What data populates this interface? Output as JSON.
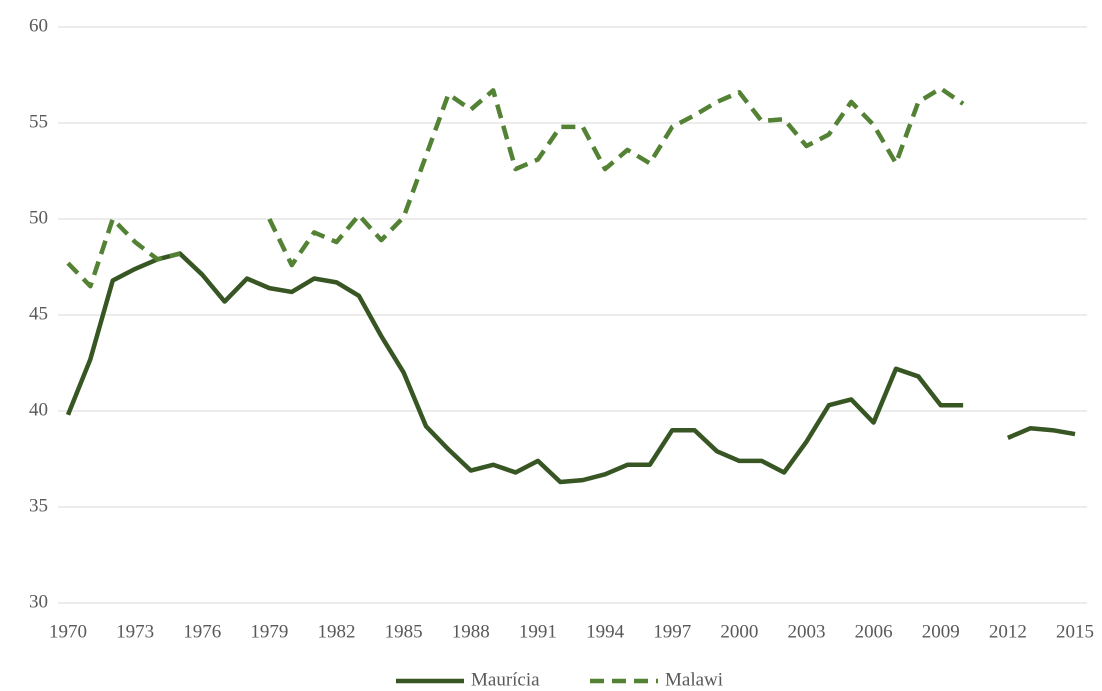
{
  "chart_data": {
    "type": "line",
    "x": [
      1970,
      1971,
      1972,
      1973,
      1974,
      1975,
      1976,
      1977,
      1978,
      1979,
      1980,
      1981,
      1982,
      1983,
      1984,
      1985,
      1986,
      1987,
      1988,
      1989,
      1990,
      1991,
      1992,
      1993,
      1994,
      1995,
      1996,
      1997,
      1998,
      1999,
      2000,
      2001,
      2002,
      2003,
      2004,
      2005,
      2006,
      2007,
      2008,
      2009,
      2010,
      2011,
      2012,
      2013,
      2014,
      2015
    ],
    "series": [
      {
        "name": "Maurícia",
        "color": "#375623",
        "style": "solid",
        "values": [
          39.8,
          42.7,
          46.8,
          47.4,
          47.9,
          48.2,
          47.1,
          45.7,
          46.9,
          46.4,
          46.2,
          46.9,
          46.7,
          46.0,
          43.9,
          42.0,
          39.2,
          38.0,
          36.9,
          37.2,
          36.8,
          37.4,
          36.3,
          36.4,
          36.7,
          37.2,
          37.2,
          39.0,
          39.0,
          37.9,
          37.4,
          37.4,
          36.8,
          38.4,
          40.3,
          40.6,
          39.4,
          42.2,
          41.8,
          40.3,
          40.3,
          null,
          38.6,
          39.1,
          39.0,
          38.8
        ]
      },
      {
        "name": "Malawi",
        "color": "#548235",
        "style": "dashed",
        "values": [
          47.7,
          46.5,
          50.0,
          48.8,
          47.9,
          48.2,
          null,
          null,
          null,
          50.0,
          47.6,
          49.3,
          48.8,
          50.2,
          48.9,
          50.1,
          53.3,
          56.5,
          55.7,
          56.7,
          52.6,
          53.1,
          54.8,
          54.8,
          52.6,
          53.6,
          52.9,
          54.8,
          55.4,
          56.1,
          56.6,
          55.1,
          55.2,
          53.8,
          54.4,
          56.1,
          54.9,
          52.9,
          56.1,
          56.8,
          56.0,
          null,
          null,
          null,
          null,
          null
        ]
      }
    ],
    "xlim": [
      1970,
      2015
    ],
    "xticks": [
      1970,
      1973,
      1976,
      1979,
      1982,
      1985,
      1988,
      1991,
      1994,
      1997,
      2000,
      2003,
      2006,
      2009,
      2012,
      2015
    ],
    "ylim": [
      30,
      60
    ],
    "yticks": [
      30,
      35,
      40,
      45,
      50,
      55,
      60
    ],
    "grid": true,
    "legend": "bottom"
  }
}
